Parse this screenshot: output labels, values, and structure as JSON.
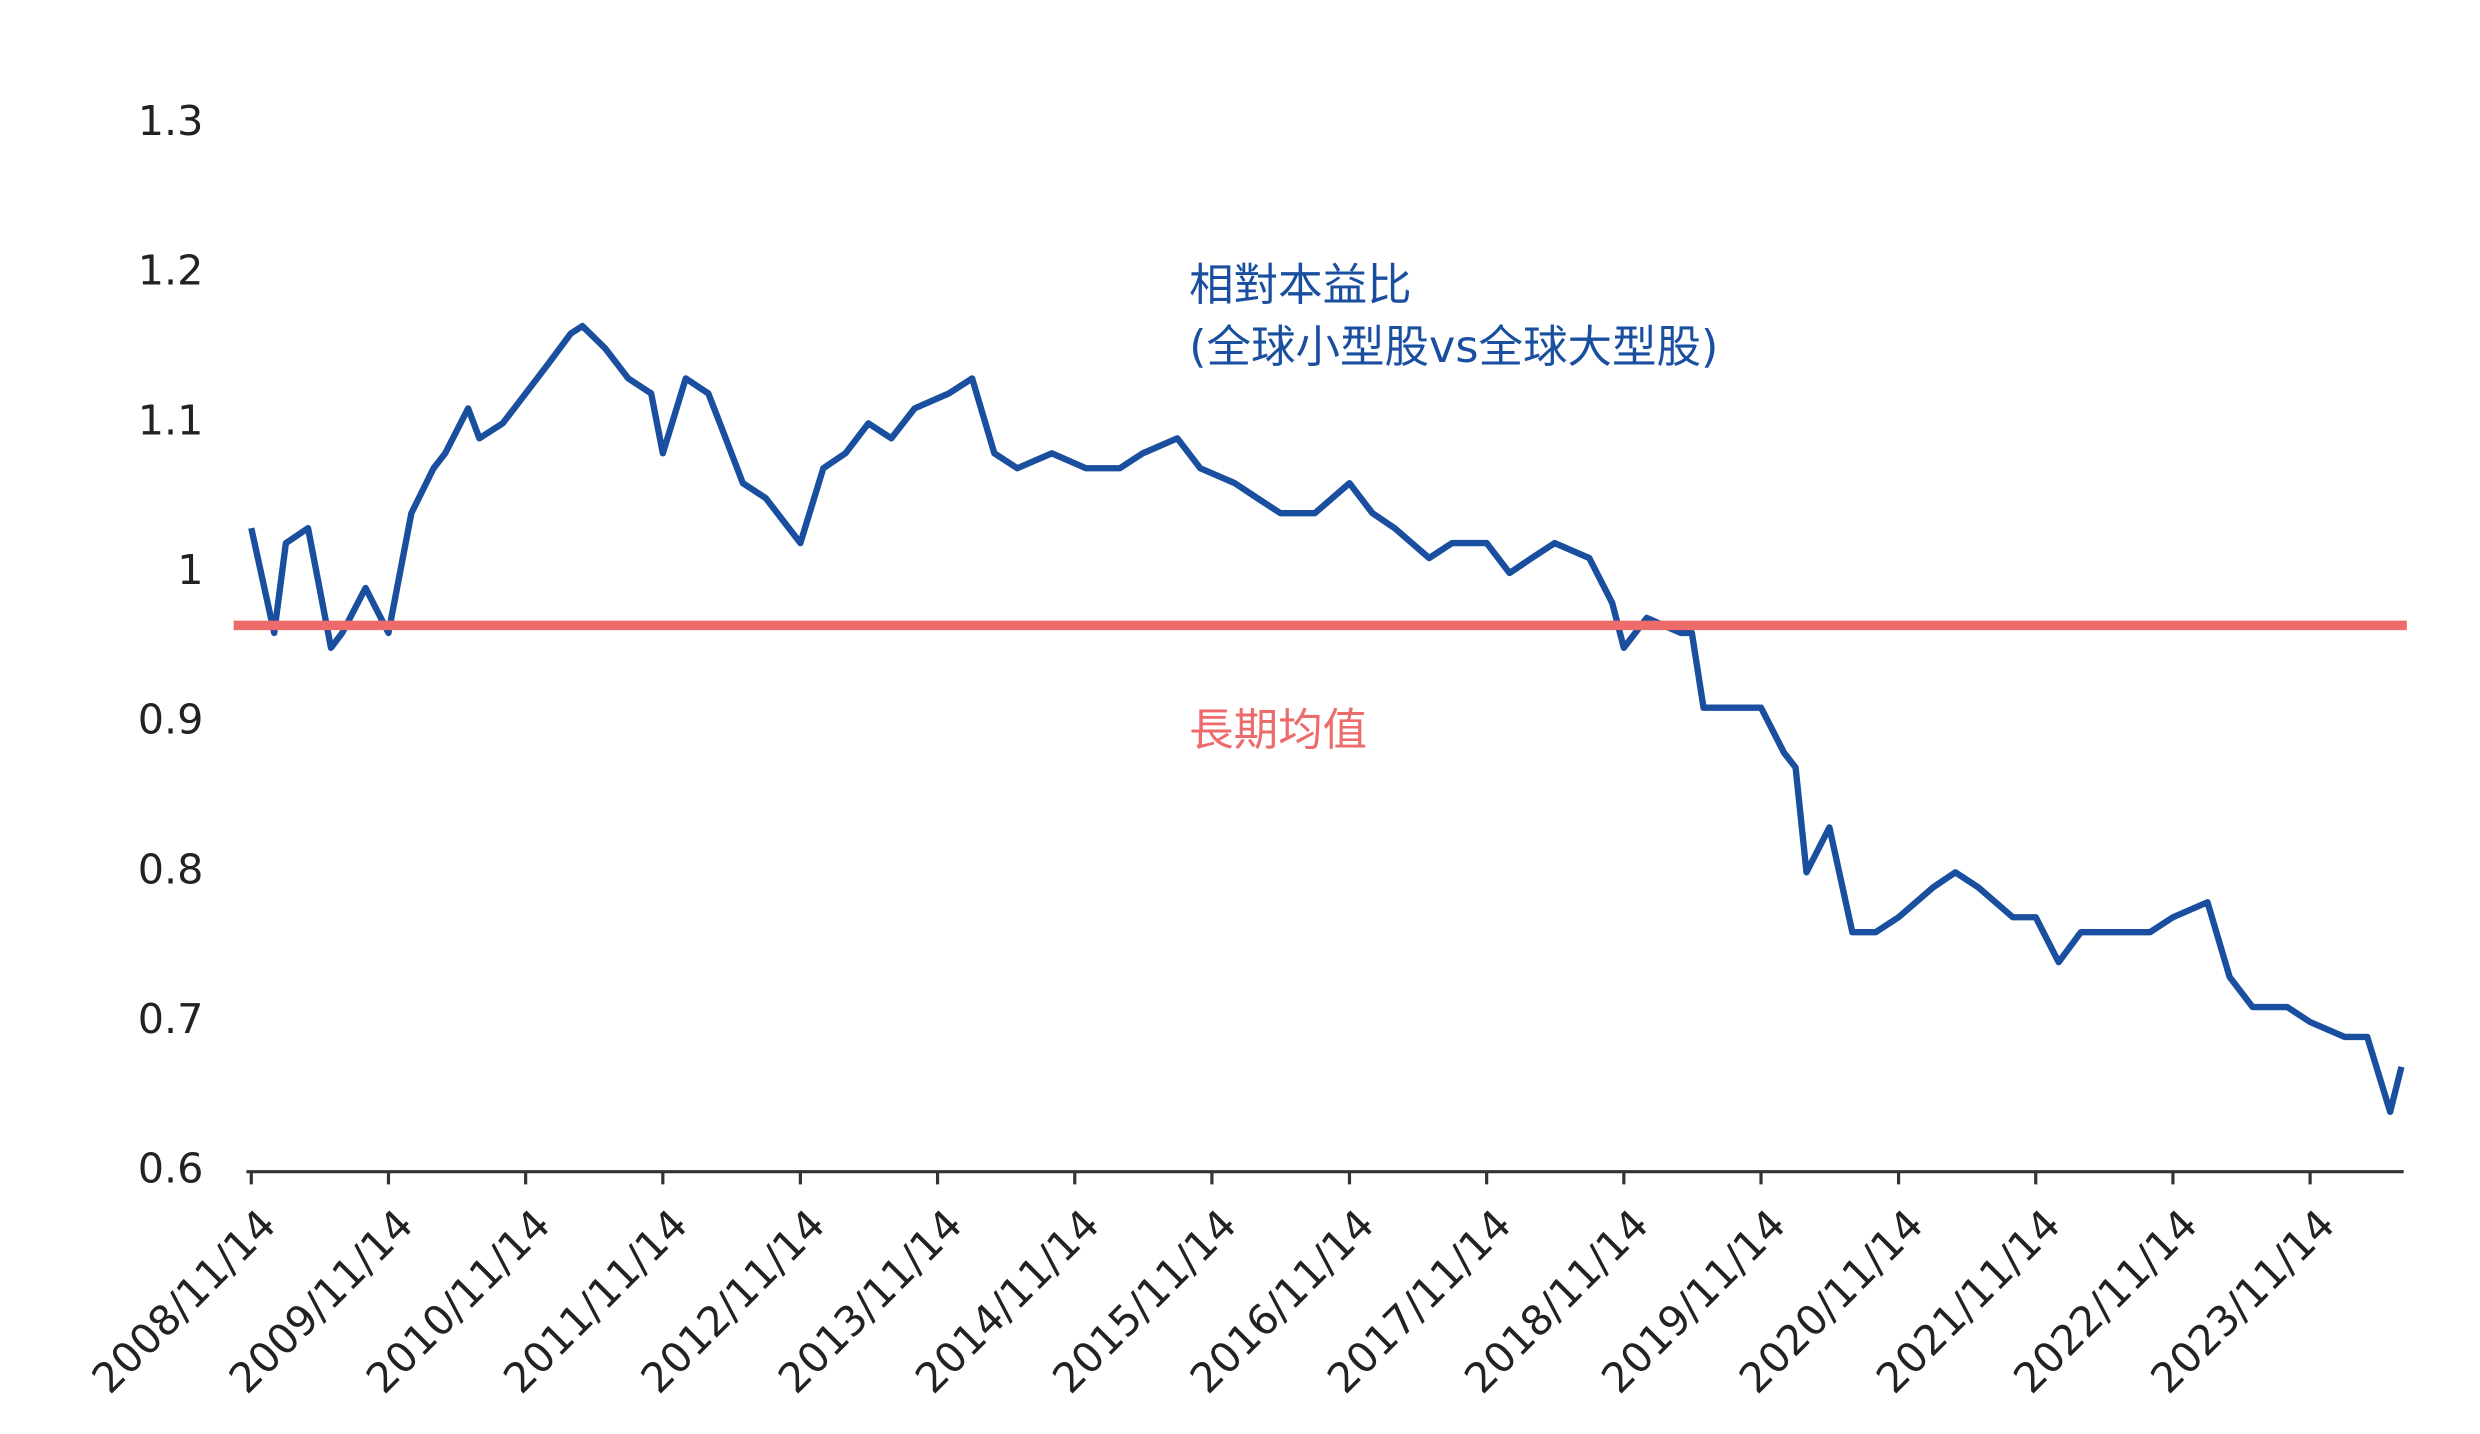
{
  "chart_data": {
    "type": "line",
    "annotations": [
      "相對本益比",
      "(全球小型股vs全球大型股)"
    ],
    "x": [
      "2008/11/14",
      "2009/01/14",
      "2009/02/14",
      "2009/04/14",
      "2009/06/14",
      "2009/07/14",
      "2009/09/14",
      "2009/11/14",
      "2010/01/14",
      "2010/03/14",
      "2010/04/14",
      "2010/06/14",
      "2010/07/14",
      "2010/09/14",
      "2010/11/14",
      "2011/01/14",
      "2011/03/14",
      "2011/04/14",
      "2011/06/14",
      "2011/08/14",
      "2011/10/14",
      "2011/11/14",
      "2012/01/14",
      "2012/03/14",
      "2012/04/14",
      "2012/06/14",
      "2012/08/14",
      "2012/11/14",
      "2013/01/14",
      "2013/03/14",
      "2013/05/14",
      "2013/07/14",
      "2013/09/14",
      "2013/12/14",
      "2014/02/14",
      "2014/04/14",
      "2014/06/14",
      "2014/09/14",
      "2014/12/14",
      "2015/03/14",
      "2015/05/14",
      "2015/08/14",
      "2015/10/14",
      "2016/01/14",
      "2016/03/14",
      "2016/05/14",
      "2016/08/14",
      "2016/11/14",
      "2017/01/14",
      "2017/03/14",
      "2017/06/14",
      "2017/08/14",
      "2017/11/14",
      "2018/01/14",
      "2018/03/14",
      "2018/05/14",
      "2018/08/14",
      "2018/10/14",
      "2018/11/14",
      "2019/01/14",
      "2019/04/14",
      "2019/05/14",
      "2019/06/14",
      "2019/08/14",
      "2019/11/14",
      "2020/01/14",
      "2020/02/14",
      "2020/03/14",
      "2020/05/14",
      "2020/07/14",
      "2020/09/14",
      "2020/11/14",
      "2021/02/14",
      "2021/04/14",
      "2021/06/14",
      "2021/09/14",
      "2021/11/14",
      "2022/01/14",
      "2022/03/14",
      "2022/06/14",
      "2022/09/14",
      "2022/11/14",
      "2023/02/14",
      "2023/04/14",
      "2023/06/14",
      "2023/09/14",
      "2023/11/14",
      "2024/02/14",
      "2024/04/14",
      "2024/06/14",
      "2024/07/14"
    ],
    "series": [
      {
        "color": "#1a4fa0",
        "values": [
          1.03,
          0.96,
          1.02,
          1.03,
          0.95,
          0.96,
          0.99,
          0.96,
          1.04,
          1.07,
          1.08,
          1.11,
          1.09,
          1.1,
          1.12,
          1.14,
          1.16,
          1.165,
          1.15,
          1.13,
          1.12,
          1.08,
          1.13,
          1.12,
          1.1,
          1.06,
          1.05,
          1.02,
          1.07,
          1.08,
          1.1,
          1.09,
          1.11,
          1.12,
          1.13,
          1.08,
          1.07,
          1.08,
          1.07,
          1.07,
          1.08,
          1.09,
          1.07,
          1.06,
          1.05,
          1.04,
          1.04,
          1.06,
          1.04,
          1.03,
          1.01,
          1.02,
          1.02,
          1.0,
          1.01,
          1.02,
          1.01,
          0.98,
          0.95,
          0.97,
          0.96,
          0.96,
          0.91,
          0.91,
          0.91,
          0.88,
          0.87,
          0.8,
          0.83,
          0.76,
          0.76,
          0.77,
          0.79,
          0.8,
          0.79,
          0.77,
          0.77,
          0.74,
          0.76,
          0.76,
          0.76,
          0.77,
          0.78,
          0.73,
          0.71,
          0.71,
          0.7,
          0.69,
          0.69,
          0.64,
          0.67
        ]
      }
    ],
    "reference_line": {
      "value": 0.965,
      "label": "長期均值",
      "color": "#ee6b6b"
    },
    "xlim": [
      "2008/11/01",
      "2024/07/20"
    ],
    "xticks": [
      "2008/11/14",
      "2009/11/14",
      "2010/11/14",
      "2011/11/14",
      "2012/11/14",
      "2013/11/14",
      "2014/11/14",
      "2015/11/14",
      "2016/11/14",
      "2017/11/14",
      "2018/11/14",
      "2019/11/14",
      "2020/11/14",
      "2021/11/14",
      "2022/11/14",
      "2023/11/14"
    ],
    "ylim": [
      0.6,
      1.3
    ],
    "yticks": [
      0.6,
      0.7,
      0.8,
      0.9,
      1,
      1.1,
      1.2,
      1.3
    ],
    "grid": false
  }
}
